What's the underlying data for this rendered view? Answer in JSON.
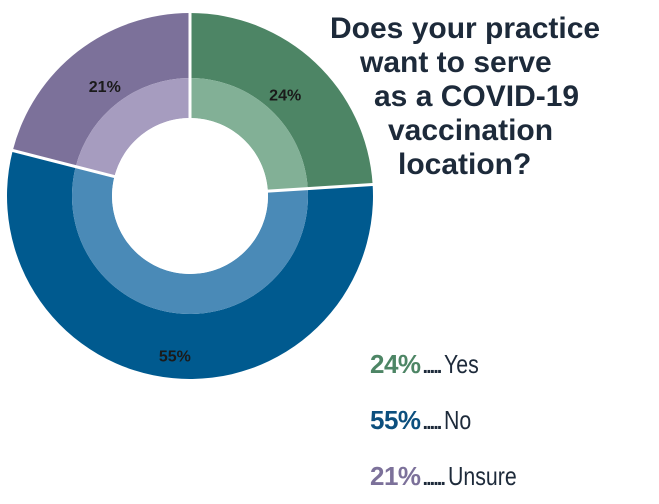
{
  "chart_data": {
    "type": "pie",
    "title_lines": [
      "Does your practice",
      "want to serve",
      "as a COVID-19",
      "vaccination",
      "location?"
    ],
    "categories": [
      "Yes",
      "No",
      "Unsure"
    ],
    "values": [
      24,
      55,
      21
    ],
    "unit": "%",
    "data_labels": [
      "24%",
      "55%",
      "21%"
    ],
    "legend": {
      "placement": "bottom-right",
      "entries": [
        {
          "percent": "24%",
          "dots": ".....",
          "label": "Yes"
        },
        {
          "percent": "55%",
          "dots": ".....",
          "label": "No"
        },
        {
          "percent": "21%",
          "dots": "......",
          "label": "Unsure"
        }
      ]
    },
    "colors": {
      "outer": [
        "#4d8565",
        "#005a8f",
        "#7c719a"
      ],
      "inner": [
        "#82b096",
        "#4a8ab7",
        "#a69cbf"
      ],
      "legend_text": [
        "#4d8565",
        "#0c4f7e",
        "#7c719a"
      ],
      "separator": "#ffffff",
      "title": "#1d2a3a"
    },
    "start_angle_deg": 0,
    "direction": "clockwise",
    "grid": false
  }
}
